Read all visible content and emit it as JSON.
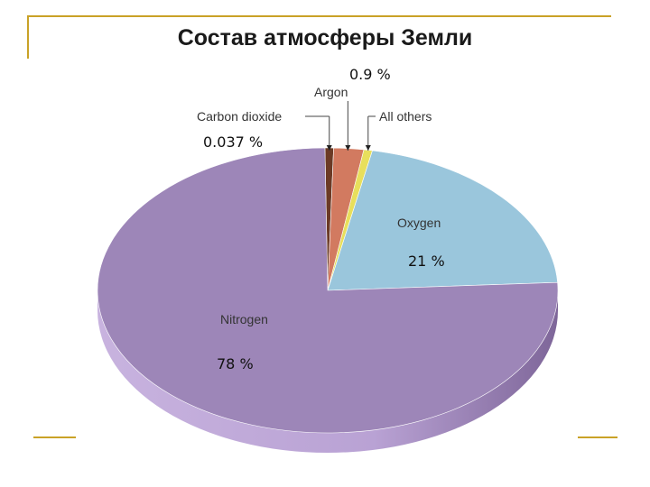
{
  "title": "Состав атмосферы Земли",
  "colors": {
    "frame": "#c9a227",
    "nitrogen": "#9d86b8",
    "oxygen": "#9ac6dc",
    "argon": "#d27a60",
    "carbon_dioxide": "#6b3a25",
    "all_others": "#e8df5c"
  },
  "chart_data": {
    "type": "pie",
    "title": "Состав атмосферы Земли",
    "slices": [
      {
        "name": "Nitrogen",
        "value": 78,
        "value_label": "78 %"
      },
      {
        "name": "Oxygen",
        "value": 21,
        "value_label": "21 %"
      },
      {
        "name": "Argon",
        "value": 0.9,
        "value_label": "0.9 %"
      },
      {
        "name": "Carbon dioxide",
        "value": 0.037,
        "value_label": "0.037 %"
      },
      {
        "name": "All others",
        "value": 0.063,
        "value_label": ""
      }
    ]
  }
}
